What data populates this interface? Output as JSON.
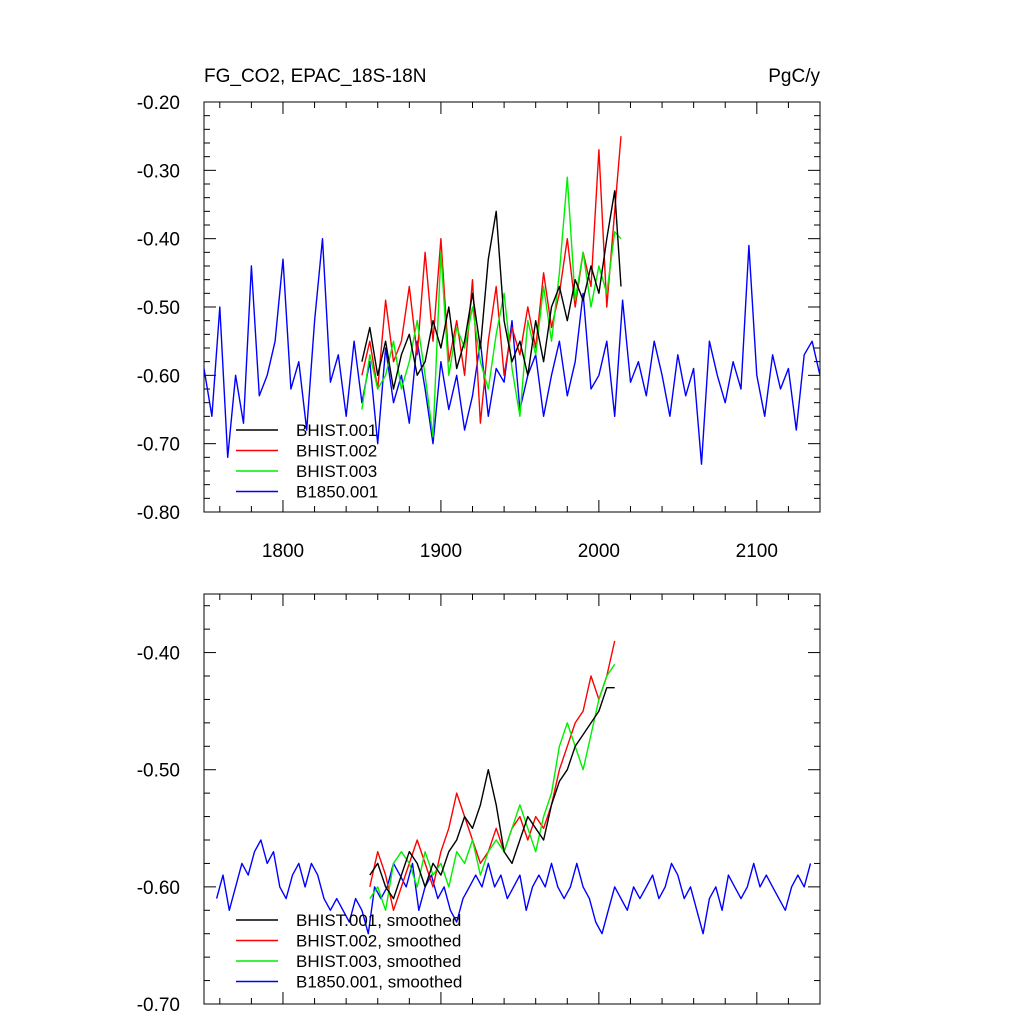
{
  "figure": {
    "title_left": "FG_CO2, EPAC_18S-18N",
    "title_right": "PgC/y"
  },
  "chart_data": [
    {
      "type": "line",
      "panel": "top",
      "xlim": [
        1750,
        2140
      ],
      "ylim": [
        -0.8,
        -0.2
      ],
      "y_ticks": [
        "-0.20",
        "-0.30",
        "-0.40",
        "-0.50",
        "-0.60",
        "-0.70",
        "-0.80"
      ],
      "y_tick_values": [
        -0.2,
        -0.3,
        -0.4,
        -0.5,
        -0.6,
        -0.7,
        -0.8
      ],
      "x_ticks": [
        "1800",
        "1900",
        "2000",
        "2100"
      ],
      "x_tick_values": [
        1800,
        1900,
        2000,
        2100
      ],
      "grid": false,
      "legend_position": "bottom-left",
      "series": [
        {
          "name": "BHIST.001",
          "color": "#000000",
          "x": [
            1850,
            1855,
            1860,
            1865,
            1870,
            1875,
            1880,
            1885,
            1890,
            1895,
            1900,
            1905,
            1910,
            1915,
            1920,
            1925,
            1930,
            1935,
            1940,
            1945,
            1950,
            1955,
            1960,
            1965,
            1970,
            1975,
            1980,
            1985,
            1990,
            1995,
            2000,
            2005,
            2010,
            2014
          ],
          "y": [
            -0.58,
            -0.53,
            -0.6,
            -0.55,
            -0.62,
            -0.57,
            -0.54,
            -0.6,
            -0.58,
            -0.52,
            -0.56,
            -0.5,
            -0.59,
            -0.55,
            -0.48,
            -0.56,
            -0.43,
            -0.36,
            -0.52,
            -0.58,
            -0.55,
            -0.6,
            -0.52,
            -0.58,
            -0.5,
            -0.47,
            -0.52,
            -0.46,
            -0.49,
            -0.44,
            -0.48,
            -0.4,
            -0.33,
            -0.47
          ]
        },
        {
          "name": "BHIST.002",
          "color": "#ff0000",
          "x": [
            1850,
            1855,
            1860,
            1865,
            1870,
            1875,
            1880,
            1885,
            1890,
            1895,
            1900,
            1905,
            1910,
            1915,
            1920,
            1925,
            1930,
            1935,
            1940,
            1945,
            1950,
            1955,
            1960,
            1965,
            1970,
            1975,
            1980,
            1985,
            1990,
            1995,
            2000,
            2005,
            2010,
            2014
          ],
          "y": [
            -0.6,
            -0.55,
            -0.62,
            -0.49,
            -0.58,
            -0.55,
            -0.47,
            -0.57,
            -0.42,
            -0.55,
            -0.4,
            -0.58,
            -0.52,
            -0.6,
            -0.46,
            -0.67,
            -0.55,
            -0.47,
            -0.6,
            -0.53,
            -0.57,
            -0.5,
            -0.56,
            -0.45,
            -0.53,
            -0.48,
            -0.4,
            -0.5,
            -0.42,
            -0.47,
            -0.27,
            -0.5,
            -0.36,
            -0.25
          ]
        },
        {
          "name": "BHIST.003",
          "color": "#00ee00",
          "x": [
            1850,
            1855,
            1860,
            1865,
            1870,
            1875,
            1880,
            1885,
            1890,
            1895,
            1900,
            1905,
            1910,
            1915,
            1920,
            1925,
            1930,
            1935,
            1940,
            1945,
            1950,
            1955,
            1960,
            1965,
            1970,
            1975,
            1980,
            1985,
            1990,
            1995,
            2000,
            2005,
            2010,
            2014
          ],
          "y": [
            -0.65,
            -0.57,
            -0.62,
            -0.6,
            -0.55,
            -0.62,
            -0.58,
            -0.52,
            -0.6,
            -0.69,
            -0.42,
            -0.6,
            -0.53,
            -0.56,
            -0.5,
            -0.58,
            -0.62,
            -0.54,
            -0.48,
            -0.59,
            -0.66,
            -0.52,
            -0.57,
            -0.47,
            -0.55,
            -0.45,
            -0.31,
            -0.49,
            -0.42,
            -0.5,
            -0.44,
            -0.48,
            -0.39,
            -0.4
          ]
        },
        {
          "name": "B1850.001",
          "color": "#0000ff",
          "x": [
            1750,
            1755,
            1760,
            1765,
            1770,
            1775,
            1780,
            1785,
            1790,
            1795,
            1800,
            1805,
            1810,
            1815,
            1820,
            1825,
            1830,
            1835,
            1840,
            1845,
            1850,
            1855,
            1860,
            1865,
            1870,
            1875,
            1880,
            1885,
            1890,
            1895,
            1900,
            1905,
            1910,
            1915,
            1920,
            1925,
            1930,
            1935,
            1940,
            1945,
            1950,
            1955,
            1960,
            1965,
            1970,
            1975,
            1980,
            1985,
            1990,
            1995,
            2000,
            2005,
            2010,
            2015,
            2020,
            2025,
            2030,
            2035,
            2040,
            2045,
            2050,
            2055,
            2060,
            2065,
            2070,
            2075,
            2080,
            2085,
            2090,
            2095,
            2100,
            2105,
            2110,
            2115,
            2120,
            2125,
            2130,
            2135,
            2140
          ],
          "y": [
            -0.59,
            -0.66,
            -0.5,
            -0.72,
            -0.6,
            -0.67,
            -0.44,
            -0.63,
            -0.6,
            -0.55,
            -0.43,
            -0.62,
            -0.58,
            -0.68,
            -0.52,
            -0.4,
            -0.61,
            -0.57,
            -0.66,
            -0.55,
            -0.64,
            -0.58,
            -0.7,
            -0.56,
            -0.64,
            -0.6,
            -0.67,
            -0.55,
            -0.62,
            -0.7,
            -0.58,
            -0.65,
            -0.6,
            -0.68,
            -0.63,
            -0.55,
            -0.66,
            -0.59,
            -0.61,
            -0.52,
            -0.65,
            -0.6,
            -0.57,
            -0.66,
            -0.6,
            -0.55,
            -0.63,
            -0.58,
            -0.48,
            -0.62,
            -0.6,
            -0.55,
            -0.66,
            -0.49,
            -0.61,
            -0.58,
            -0.63,
            -0.55,
            -0.6,
            -0.66,
            -0.57,
            -0.63,
            -0.59,
            -0.73,
            -0.55,
            -0.6,
            -0.64,
            -0.58,
            -0.62,
            -0.41,
            -0.6,
            -0.66,
            -0.57,
            -0.62,
            -0.59,
            -0.68,
            -0.57,
            -0.55,
            -0.6
          ]
        }
      ]
    },
    {
      "type": "line",
      "panel": "bottom",
      "xlim": [
        1750,
        2140
      ],
      "ylim": [
        -0.7,
        -0.35
      ],
      "y_ticks": [
        "-0.40",
        "-0.50",
        "-0.60",
        "-0.70"
      ],
      "y_tick_values": [
        -0.4,
        -0.5,
        -0.6,
        -0.7
      ],
      "x_tick_values": [
        1800,
        1900,
        2000,
        2100
      ],
      "grid": false,
      "legend_position": "bottom-left",
      "series": [
        {
          "name": "BHIST.001, smoothed",
          "color": "#000000",
          "x": [
            1855,
            1860,
            1865,
            1870,
            1875,
            1880,
            1885,
            1890,
            1895,
            1900,
            1905,
            1910,
            1915,
            1920,
            1925,
            1930,
            1935,
            1940,
            1945,
            1950,
            1955,
            1960,
            1965,
            1970,
            1975,
            1980,
            1985,
            1990,
            1995,
            2000,
            2005,
            2010
          ],
          "y": [
            -0.59,
            -0.58,
            -0.6,
            -0.61,
            -0.59,
            -0.57,
            -0.58,
            -0.6,
            -0.58,
            -0.59,
            -0.57,
            -0.56,
            -0.54,
            -0.55,
            -0.53,
            -0.5,
            -0.53,
            -0.57,
            -0.58,
            -0.56,
            -0.54,
            -0.55,
            -0.56,
            -0.53,
            -0.51,
            -0.5,
            -0.48,
            -0.47,
            -0.46,
            -0.45,
            -0.43,
            -0.43
          ]
        },
        {
          "name": "BHIST.002, smoothed",
          "color": "#ff0000",
          "x": [
            1855,
            1860,
            1865,
            1870,
            1875,
            1880,
            1885,
            1890,
            1895,
            1900,
            1905,
            1910,
            1915,
            1920,
            1925,
            1930,
            1935,
            1940,
            1945,
            1950,
            1955,
            1960,
            1965,
            1970,
            1975,
            1980,
            1985,
            1990,
            1995,
            2000,
            2005,
            2010
          ],
          "y": [
            -0.6,
            -0.57,
            -0.59,
            -0.62,
            -0.6,
            -0.58,
            -0.56,
            -0.58,
            -0.6,
            -0.57,
            -0.55,
            -0.52,
            -0.54,
            -0.56,
            -0.58,
            -0.57,
            -0.55,
            -0.57,
            -0.55,
            -0.54,
            -0.56,
            -0.54,
            -0.55,
            -0.53,
            -0.5,
            -0.48,
            -0.46,
            -0.45,
            -0.42,
            -0.44,
            -0.42,
            -0.39
          ]
        },
        {
          "name": "BHIST.003, smoothed",
          "color": "#00ee00",
          "x": [
            1855,
            1860,
            1865,
            1870,
            1875,
            1880,
            1885,
            1890,
            1895,
            1900,
            1905,
            1910,
            1915,
            1920,
            1925,
            1930,
            1935,
            1940,
            1945,
            1950,
            1955,
            1960,
            1965,
            1970,
            1975,
            1980,
            1985,
            1990,
            1995,
            2000,
            2005,
            2010
          ],
          "y": [
            -0.61,
            -0.6,
            -0.62,
            -0.58,
            -0.57,
            -0.58,
            -0.6,
            -0.57,
            -0.59,
            -0.58,
            -0.6,
            -0.57,
            -0.58,
            -0.56,
            -0.59,
            -0.57,
            -0.56,
            -0.57,
            -0.55,
            -0.53,
            -0.55,
            -0.57,
            -0.54,
            -0.52,
            -0.48,
            -0.46,
            -0.48,
            -0.5,
            -0.47,
            -0.44,
            -0.42,
            -0.41
          ]
        },
        {
          "name": "B1850.001, smoothed",
          "color": "#0000ff",
          "x": [
            1758,
            1762,
            1766,
            1770,
            1774,
            1778,
            1782,
            1786,
            1790,
            1794,
            1798,
            1802,
            1806,
            1810,
            1814,
            1818,
            1822,
            1826,
            1830,
            1834,
            1838,
            1842,
            1846,
            1850,
            1854,
            1858,
            1862,
            1866,
            1870,
            1874,
            1878,
            1882,
            1886,
            1890,
            1894,
            1898,
            1902,
            1906,
            1910,
            1914,
            1918,
            1922,
            1926,
            1930,
            1934,
            1938,
            1942,
            1946,
            1950,
            1954,
            1958,
            1962,
            1966,
            1970,
            1974,
            1978,
            1982,
            1986,
            1990,
            1994,
            1998,
            2002,
            2006,
            2010,
            2014,
            2018,
            2022,
            2026,
            2030,
            2034,
            2038,
            2042,
            2046,
            2050,
            2054,
            2058,
            2062,
            2066,
            2070,
            2074,
            2078,
            2082,
            2086,
            2090,
            2094,
            2098,
            2102,
            2106,
            2110,
            2114,
            2118,
            2122,
            2126,
            2130,
            2134
          ],
          "y": [
            -0.61,
            -0.59,
            -0.62,
            -0.6,
            -0.58,
            -0.59,
            -0.57,
            -0.56,
            -0.58,
            -0.57,
            -0.6,
            -0.61,
            -0.59,
            -0.58,
            -0.6,
            -0.58,
            -0.59,
            -0.61,
            -0.62,
            -0.61,
            -0.62,
            -0.63,
            -0.61,
            -0.62,
            -0.64,
            -0.6,
            -0.61,
            -0.6,
            -0.58,
            -0.59,
            -0.6,
            -0.58,
            -0.62,
            -0.6,
            -0.59,
            -0.61,
            -0.6,
            -0.62,
            -0.63,
            -0.61,
            -0.6,
            -0.59,
            -0.6,
            -0.58,
            -0.6,
            -0.59,
            -0.61,
            -0.6,
            -0.59,
            -0.62,
            -0.6,
            -0.59,
            -0.6,
            -0.58,
            -0.6,
            -0.61,
            -0.6,
            -0.58,
            -0.6,
            -0.61,
            -0.63,
            -0.64,
            -0.62,
            -0.6,
            -0.61,
            -0.62,
            -0.6,
            -0.61,
            -0.6,
            -0.59,
            -0.61,
            -0.6,
            -0.58,
            -0.59,
            -0.61,
            -0.6,
            -0.62,
            -0.64,
            -0.61,
            -0.6,
            -0.62,
            -0.59,
            -0.6,
            -0.61,
            -0.6,
            -0.58,
            -0.6,
            -0.59,
            -0.6,
            -0.61,
            -0.62,
            -0.6,
            -0.59,
            -0.6,
            -0.58
          ]
        }
      ]
    }
  ]
}
